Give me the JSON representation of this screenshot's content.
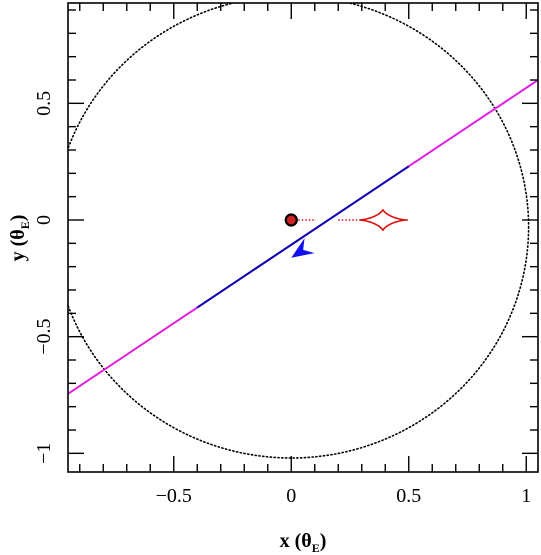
{
  "chart_data": {
    "type": "scatter",
    "title": "",
    "xlabel": "x (θ",
    "xlabel_sub": "E",
    "xlabel_close": ")",
    "ylabel": "y (θ",
    "ylabel_sub": "E",
    "ylabel_close": ")",
    "xlim": [
      -0.95,
      1.05
    ],
    "ylim": [
      -1.08,
      0.93
    ],
    "x_ticks": [
      {
        "value": -0.5,
        "label": "−0.5"
      },
      {
        "value": 0,
        "label": "0"
      },
      {
        "value": 0.5,
        "label": "0.5"
      },
      {
        "value": 1,
        "label": "1"
      }
    ],
    "y_ticks": [
      {
        "value": -1,
        "label": "−1"
      },
      {
        "value": -0.5,
        "label": "−0.5"
      },
      {
        "value": 0,
        "label": "0"
      },
      {
        "value": 0.5,
        "label": "0.5"
      }
    ],
    "x_minor_step": 0.1,
    "y_minor_step": 0.1,
    "grid": false,
    "colors": {
      "trajectory_outer": "#e020e0",
      "trajectory_inner": "#0a0ab0",
      "arrow": "#1010ee",
      "caustic": "#dd1010",
      "critical_curve": "#000000",
      "lens": "#000000",
      "lens_fill": "#cc2222"
    },
    "source_trajectory": {
      "start": [
        -0.95,
        -0.745
      ],
      "end": [
        1.05,
        0.6
      ],
      "inner_segment_x": [
        -0.4,
        0.5
      ],
      "arrow_tip": [
        0.0,
        -0.162
      ]
    },
    "lens_positions": [
      {
        "x": 0.0,
        "y": 0.0
      }
    ],
    "critical_curve": {
      "center": [
        0.0,
        -0.03
      ],
      "radius_x": 1.01,
      "radius_y": 0.99
    },
    "caustics": [
      {
        "kind": "astroid",
        "center": [
          0.39,
          0.0
        ],
        "half_width": 0.1,
        "half_height": 0.046
      },
      {
        "kind": "dotted-trail",
        "x_range": [
          0.0,
          0.105
        ],
        "y": 0.0
      },
      {
        "kind": "dotted-trail",
        "x_range": [
          0.2,
          0.29
        ],
        "y": 0.0
      },
      {
        "kind": "dotted-trail",
        "x_range": [
          0.49,
          0.5
        ],
        "y": 0.0
      }
    ]
  }
}
